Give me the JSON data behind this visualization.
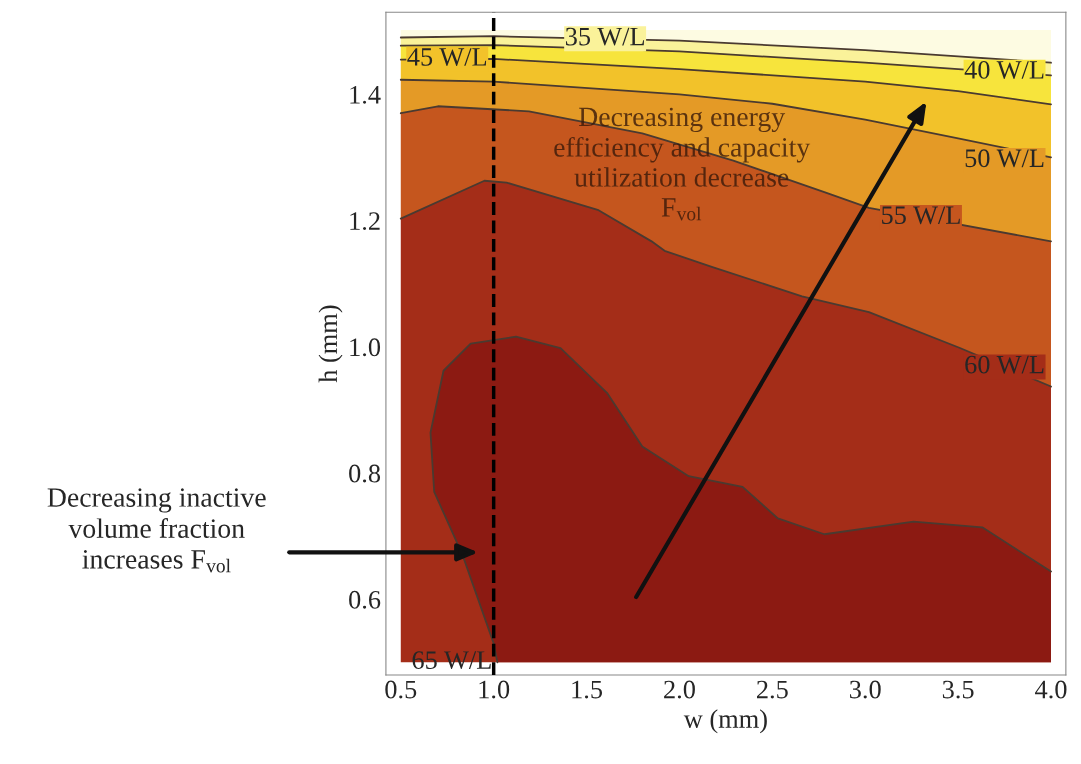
{
  "chart_data": {
    "type": "line",
    "xlabel": "w (mm)",
    "ylabel": "h (mm)",
    "xlim": [
      0.42,
      4.08
    ],
    "ylim": [
      0.48,
      1.53
    ],
    "xticks": [
      {
        "value": 0.5,
        "label": "0.5"
      },
      {
        "value": 1.0,
        "label": "1.0"
      },
      {
        "value": 1.5,
        "label": "1.5"
      },
      {
        "value": 2.0,
        "label": "2.0"
      },
      {
        "value": 2.5,
        "label": "2.5"
      },
      {
        "value": 3.0,
        "label": "3.0"
      },
      {
        "value": 3.5,
        "label": "3.5"
      },
      {
        "value": 4.0,
        "label": "4.0"
      }
    ],
    "yticks": [
      {
        "value": 0.6,
        "label": "0.6"
      },
      {
        "value": 0.8,
        "label": "0.8"
      },
      {
        "value": 1.0,
        "label": "1.0"
      },
      {
        "value": 1.2,
        "label": "1.2"
      },
      {
        "value": 1.4,
        "label": "1.4"
      }
    ],
    "series": [
      {
        "name": "35 W/L",
        "color": "#4a3a30",
        "x": [
          0.5,
          1.0,
          2.0,
          3.0,
          3.5,
          4.0
        ],
        "values": [
          1.49,
          1.492,
          1.485,
          1.47,
          1.46,
          1.45
        ]
      },
      {
        "name": "40 W/L",
        "color": "#4a3a30",
        "x": [
          0.5,
          1.0,
          2.0,
          3.0,
          3.5,
          4.0
        ],
        "values": [
          1.477,
          1.478,
          1.468,
          1.45,
          1.44,
          1.43
        ]
      },
      {
        "name": "45 W/L",
        "color": "#4a3a30",
        "x": [
          0.5,
          1.0,
          2.0,
          3.0,
          3.5,
          4.0
        ],
        "values": [
          1.455,
          1.456,
          1.44,
          1.42,
          1.405,
          1.384
        ]
      },
      {
        "name": "50 W/L",
        "color": "#4a3a30",
        "x": [
          0.5,
          1.0,
          2.0,
          2.5,
          3.0,
          3.5,
          4.0
        ],
        "values": [
          1.423,
          1.42,
          1.4,
          1.385,
          1.36,
          1.33,
          1.3
        ]
      },
      {
        "name": "55 W/L",
        "color": "#4a3a30",
        "x": [
          0.5,
          0.7,
          1.19,
          1.8,
          2.29,
          2.78,
          3.02,
          4.0
        ],
        "values": [
          1.37,
          1.381,
          1.373,
          1.338,
          1.295,
          1.245,
          1.22,
          1.167
        ]
      },
      {
        "name": "60 W/L",
        "color": "#4a3a30",
        "x": [
          0.5,
          0.95,
          1.07,
          1.56,
          1.85,
          1.92,
          2.17,
          2.66,
          3.02,
          3.51,
          4.0
        ],
        "values": [
          1.203,
          1.263,
          1.26,
          1.217,
          1.167,
          1.152,
          1.127,
          1.08,
          1.055,
          0.998,
          0.937
        ]
      },
      {
        "name": "65 W/L",
        "color": "#4a3a30",
        "x": [
          1.02,
          1.0,
          0.83,
          0.68,
          0.66,
          0.73,
          0.876,
          1.12,
          1.36,
          1.61,
          1.8,
          2.05,
          2.34,
          2.53,
          2.78,
          3.26,
          3.63,
          4.0
        ],
        "values": [
          0.5,
          0.53,
          0.672,
          0.77,
          0.864,
          0.962,
          1.005,
          1.016,
          0.998,
          0.927,
          0.842,
          0.795,
          0.778,
          0.728,
          0.703,
          0.723,
          0.714,
          0.644
        ]
      }
    ],
    "ref_lines": [
      {
        "axis": "x",
        "value": 1.0,
        "color": "#000000",
        "line_style": "dashed"
      }
    ],
    "annotations": [
      "Decreasing energy\nefficiency and capacity\nutilization decrease\nF$_{vol}$",
      "Decreasing inactive\nvolume fraction\nincreases F$_{vol}$"
    ]
  }
}
